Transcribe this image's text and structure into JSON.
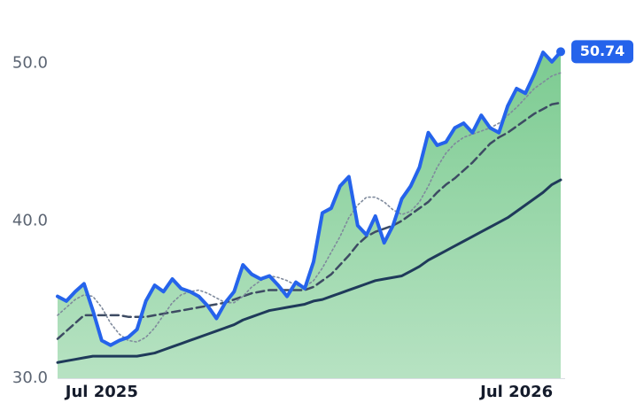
{
  "chart_data": {
    "type": "line",
    "categories": [
      null,
      null,
      null,
      null,
      null,
      "Jul 2025",
      null,
      null,
      null,
      null,
      null,
      null,
      null,
      null,
      null,
      null,
      null,
      null,
      null,
      null,
      null,
      null,
      null,
      null,
      null,
      null,
      null,
      null,
      null,
      null,
      null,
      null,
      null,
      null,
      null,
      null,
      null,
      null,
      null,
      null,
      null,
      null,
      null,
      null,
      null,
      null,
      null,
      null,
      null,
      null,
      null,
      null,
      "Jul 2026",
      null,
      null,
      null,
      null,
      null
    ],
    "series": [
      {
        "color": "#1f3a5a",
        "style": "solid",
        "values": [
          31.0,
          31.1,
          31.2,
          31.3,
          31.4,
          31.4,
          31.4,
          31.4,
          31.4,
          31.4,
          31.5,
          31.6,
          31.8,
          32.0,
          32.2,
          32.4,
          32.6,
          32.8,
          33.0,
          33.2,
          33.4,
          33.7,
          33.9,
          34.1,
          34.3,
          34.4,
          34.5,
          34.6,
          34.7,
          34.9,
          35.0,
          35.2,
          35.4,
          35.6,
          35.8,
          36.0,
          36.2,
          36.3,
          36.4,
          36.5,
          36.8,
          37.1,
          37.5,
          37.8,
          38.1,
          38.4,
          38.7,
          39.0,
          39.3,
          39.6,
          39.9,
          40.2,
          40.6,
          41.0,
          41.4,
          41.8,
          42.3,
          42.6
        ]
      },
      {
        "color": "#3d4b63",
        "style": "dashed",
        "values": [
          32.5,
          33,
          33.5,
          34,
          34,
          34,
          34,
          34,
          33.9,
          33.9,
          33.9,
          34,
          34.1,
          34.2,
          34.3,
          34.4,
          34.5,
          34.6,
          34.7,
          34.8,
          35,
          35.2,
          35.4,
          35.5,
          35.6,
          35.6,
          35.6,
          35.6,
          35.6,
          35.8,
          36.2,
          36.6,
          37.2,
          37.8,
          38.5,
          39,
          39.3,
          39.5,
          39.7,
          40,
          40.4,
          40.8,
          41.2,
          41.8,
          42.3,
          42.7,
          43.2,
          43.7,
          44.3,
          44.9,
          45.3,
          45.6,
          46,
          46.4,
          46.8,
          47.1,
          47.4,
          47.5
        ]
      },
      {
        "color": "#7f8a9c",
        "style": "dotted",
        "values": [
          34,
          34.5,
          35,
          35.3,
          35.2,
          34.5,
          33.5,
          32.8,
          32.4,
          32.3,
          32.6,
          33.2,
          34,
          34.8,
          35.3,
          35.5,
          35.6,
          35.4,
          35.1,
          34.8,
          34.8,
          35.2,
          35.8,
          36.2,
          36.5,
          36.4,
          36.2,
          35.9,
          35.8,
          36.2,
          37,
          38,
          39,
          40.2,
          41,
          41.5,
          41.5,
          41.2,
          40.7,
          40.4,
          40.6,
          41.2,
          42.2,
          43.4,
          44.3,
          44.9,
          45.3,
          45.5,
          45.7,
          45.9,
          46.2,
          46.7,
          47.2,
          47.8,
          48.4,
          48.8,
          49.2,
          49.4
        ]
      },
      {
        "color": "#2563eb",
        "style": "solid",
        "fill": true,
        "fill_color": "#7ccb91",
        "last_label": true,
        "values": [
          35.2,
          34.9,
          35.5,
          36.0,
          34.3,
          32.4,
          32.1,
          32.4,
          32.6,
          33.1,
          34.9,
          35.9,
          35.5,
          36.3,
          35.7,
          35.5,
          35.2,
          34.6,
          33.8,
          34.8,
          35.5,
          37.2,
          36.6,
          36.3,
          36.5,
          35.9,
          35.2,
          36.1,
          35.7,
          37.4,
          40.5,
          40.8,
          42.2,
          42.8,
          39.7,
          39.1,
          40.3,
          38.6,
          39.7,
          41.4,
          42.2,
          43.4,
          45.6,
          44.8,
          45.0,
          45.9,
          46.2,
          45.6,
          46.7,
          45.9,
          45.6,
          47.3,
          48.4,
          48.1,
          49.3,
          50.7,
          50.1,
          50.74
        ]
      }
    ],
    "ylim": [
      30,
      52
    ],
    "yticks": [
      {
        "value": 30,
        "label": "30.0"
      },
      {
        "value": 40,
        "label": "40.0"
      },
      {
        "value": 50,
        "label": "50.0"
      }
    ],
    "grid": false
  }
}
